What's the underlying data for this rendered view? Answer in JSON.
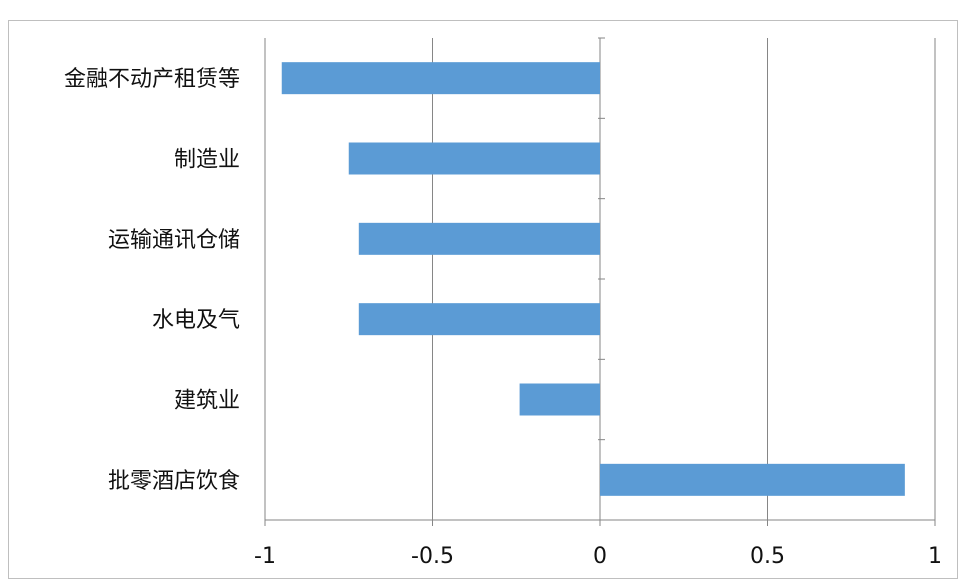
{
  "chart_data": {
    "type": "bar",
    "orientation": "horizontal",
    "categories": [
      "金融不动产租赁等",
      "制造业",
      "运输通讯仓储",
      "水电及气",
      "建筑业",
      "批零酒店饮食"
    ],
    "values": [
      -0.95,
      -0.75,
      -0.72,
      -0.72,
      -0.24,
      0.91
    ],
    "xlim": [
      -1,
      1
    ],
    "xticks": [
      "-1",
      "-0.5",
      "0",
      "0.5",
      "1"
    ],
    "xtick_values": [
      -1,
      -0.5,
      0,
      0.5,
      1
    ],
    "grid": true,
    "colors": {
      "bar": "#5b9bd5",
      "grid": "#868686",
      "axis": "#868686"
    }
  }
}
